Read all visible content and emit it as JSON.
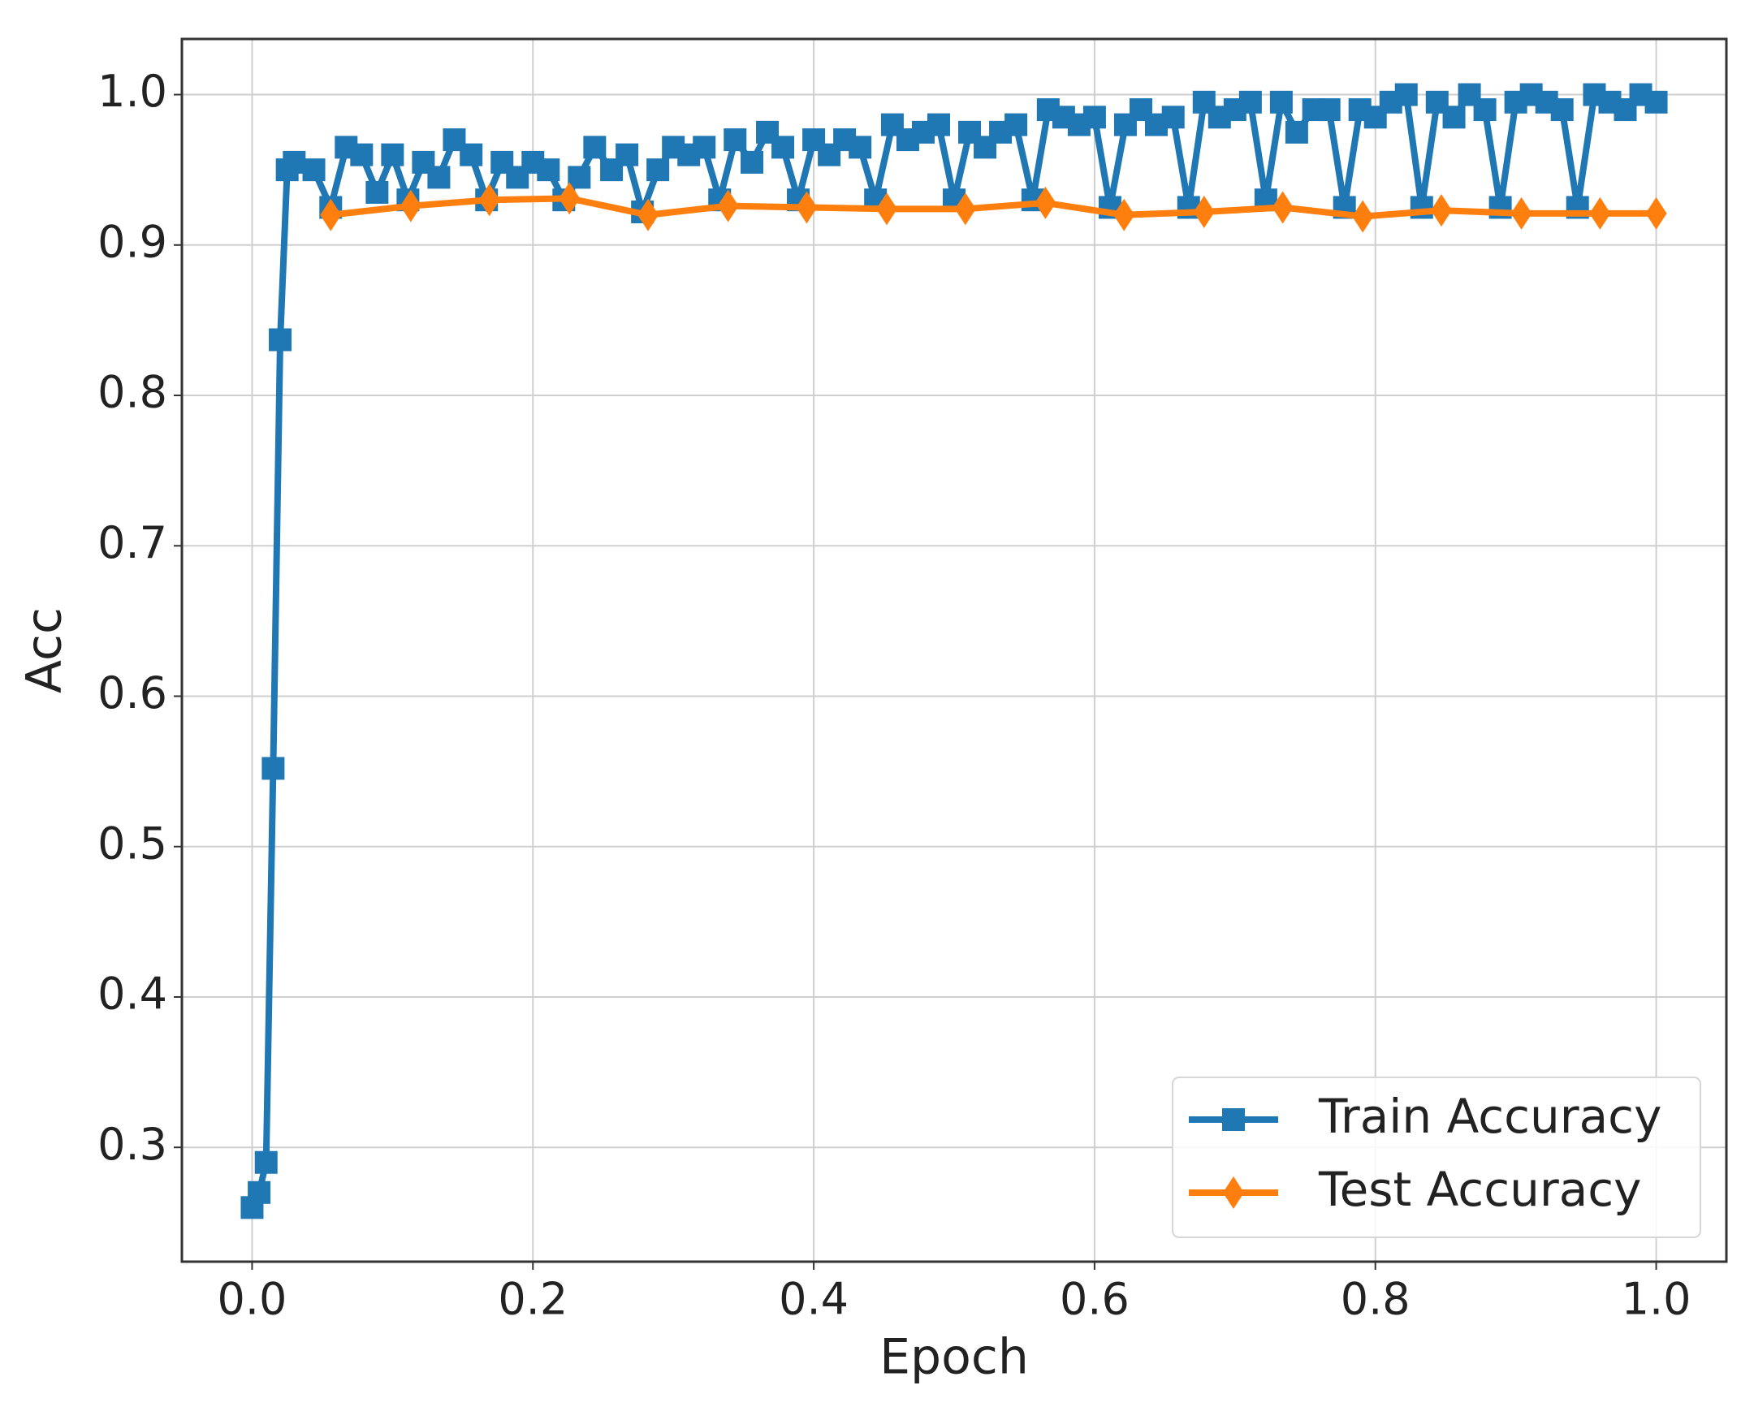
{
  "chart_data": {
    "type": "line",
    "xlabel": "Epoch",
    "ylabel": "Acc",
    "xlim": [
      -0.05,
      1.05
    ],
    "ylim": [
      0.224,
      1.037
    ],
    "xticks": [
      {
        "value": 0,
        "label": "0.0"
      },
      0.2,
      0.4,
      0.6,
      0.8,
      {
        "value": 1,
        "label": "1.0"
      }
    ],
    "yticks": [
      0.3,
      0.4,
      0.5,
      0.6,
      0.7,
      0.8,
      0.9,
      {
        "value": 1,
        "label": "1.0"
      }
    ],
    "grid": true,
    "legend": "lower right",
    "series": [
      {
        "name": "Train Accuracy",
        "color": "#1f77b4",
        "marker": "square",
        "x": [
          0,
          0.005,
          0.01,
          0.015,
          0.02,
          0.025,
          0.03,
          0.044,
          0.056,
          0.067,
          0.078,
          0.089,
          0.1,
          0.111,
          0.122,
          0.133,
          0.144,
          0.156,
          0.167,
          0.178,
          0.189,
          0.2,
          0.211,
          0.222,
          0.233,
          0.244,
          0.256,
          0.267,
          0.278,
          0.289,
          0.3,
          0.311,
          0.322,
          0.333,
          0.344,
          0.356,
          0.367,
          0.378,
          0.389,
          0.4,
          0.411,
          0.422,
          0.433,
          0.444,
          0.456,
          0.467,
          0.478,
          0.489,
          0.5,
          0.511,
          0.522,
          0.533,
          0.544,
          0.556,
          0.567,
          0.578,
          0.589,
          0.6,
          0.611,
          0.622,
          0.633,
          0.644,
          0.656,
          0.667,
          0.678,
          0.689,
          0.7,
          0.711,
          0.722,
          0.733,
          0.744,
          0.756,
          0.767,
          0.778,
          0.789,
          0.8,
          0.811,
          0.822,
          0.833,
          0.844,
          0.856,
          0.867,
          0.878,
          0.889,
          0.9,
          0.911,
          0.922,
          0.933,
          0.944,
          0.956,
          0.967,
          0.978,
          0.989,
          1.0
        ],
        "values": [
          0.26,
          0.27,
          0.29,
          0.552,
          0.837,
          0.95,
          0.955,
          0.95,
          0.925,
          0.965,
          0.96,
          0.935,
          0.96,
          0.93,
          0.955,
          0.945,
          0.97,
          0.96,
          0.93,
          0.955,
          0.945,
          0.955,
          0.95,
          0.93,
          0.945,
          0.965,
          0.95,
          0.96,
          0.922,
          0.95,
          0.965,
          0.96,
          0.965,
          0.93,
          0.97,
          0.955,
          0.975,
          0.965,
          0.93,
          0.97,
          0.96,
          0.97,
          0.965,
          0.93,
          0.98,
          0.97,
          0.975,
          0.98,
          0.93,
          0.975,
          0.965,
          0.975,
          0.98,
          0.93,
          0.99,
          0.985,
          0.98,
          0.985,
          0.925,
          0.98,
          0.99,
          0.98,
          0.985,
          0.925,
          0.995,
          0.985,
          0.99,
          0.995,
          0.93,
          0.995,
          0.975,
          0.99,
          0.99,
          0.925,
          0.99,
          0.985,
          0.995,
          1.0,
          0.925,
          0.995,
          0.985,
          1.0,
          0.99,
          0.925,
          0.995,
          1.0,
          0.995,
          0.99,
          0.925,
          1.0,
          0.995,
          0.99,
          1.0,
          0.995
        ]
      },
      {
        "name": "Test Accuracy",
        "color": "#ff7f0e",
        "marker": "diamond",
        "x": [
          0.056,
          0.113,
          0.169,
          0.226,
          0.282,
          0.339,
          0.395,
          0.452,
          0.508,
          0.565,
          0.621,
          0.678,
          0.734,
          0.791,
          0.847,
          0.904,
          0.96,
          1.0
        ],
        "values": [
          0.92,
          0.926,
          0.93,
          0.931,
          0.92,
          0.926,
          0.925,
          0.924,
          0.924,
          0.928,
          0.92,
          0.922,
          0.925,
          0.919,
          0.923,
          0.921,
          0.921,
          0.921
        ]
      }
    ]
  }
}
